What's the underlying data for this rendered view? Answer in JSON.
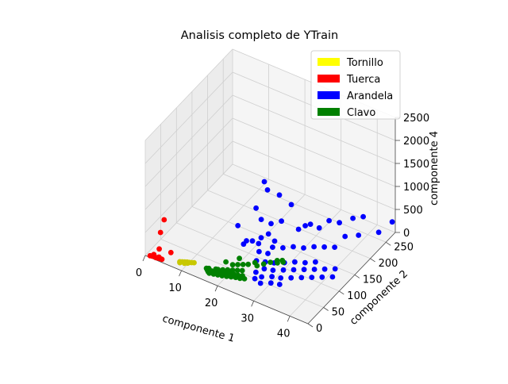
{
  "chart_data": {
    "type": "scatter",
    "projection": "3d",
    "title": "Analisis completo de YTrain",
    "xlabel": "componente 1",
    "ylabel": "componente 2",
    "zlabel": "componente 4",
    "xlim": [
      0,
      45
    ],
    "ylim": [
      0,
      280
    ],
    "zlim": [
      0,
      2500
    ],
    "xticks": [
      "0",
      "10",
      "20",
      "30",
      "40"
    ],
    "yticks": [
      "0",
      "50",
      "100",
      "150",
      "200",
      "250"
    ],
    "zticks": [
      "0",
      "500",
      "1000",
      "1500",
      "2000",
      "2500"
    ],
    "grid": true,
    "legend_position": "top-right",
    "series": [
      {
        "name": "Tornillo",
        "color": "#ffff00",
        "marker_color": "#c8c800",
        "points": [
          [
            8.0,
            18,
            0
          ],
          [
            8.5,
            20,
            0
          ],
          [
            9.0,
            22,
            0
          ],
          [
            9.5,
            24,
            0
          ],
          [
            10.0,
            25,
            0
          ],
          [
            8.2,
            16,
            0
          ],
          [
            9.2,
            19,
            0
          ],
          [
            10.5,
            27,
            0
          ],
          [
            11.0,
            29,
            0
          ],
          [
            9.8,
            22,
            0
          ]
        ]
      },
      {
        "name": "Tuerca",
        "color": "#ff0000",
        "marker_color": "#ff0000",
        "points": [
          [
            1.0,
            4,
            0
          ],
          [
            1.5,
            5,
            0
          ],
          [
            2.0,
            6,
            0
          ],
          [
            2.5,
            5,
            0
          ],
          [
            3.0,
            6,
            0
          ],
          [
            3.5,
            7,
            0
          ],
          [
            4.0,
            7,
            0
          ],
          [
            1.5,
            10,
            0
          ],
          [
            3.0,
            9,
            0
          ],
          [
            3.0,
            10,
            170
          ],
          [
            3.0,
            14,
            500
          ],
          [
            3.5,
            20,
            750
          ],
          [
            4.5,
            30,
            0
          ]
        ]
      },
      {
        "name": "Arandela",
        "color": "#0000ff",
        "marker_color": "#0000ff",
        "points": [
          [
            20.0,
            150,
            1200
          ],
          [
            20.0,
            160,
            950
          ],
          [
            19.0,
            135,
            700
          ],
          [
            20.0,
            140,
            450
          ],
          [
            17.0,
            100,
            500
          ],
          [
            22.0,
            175,
            800
          ],
          [
            21.0,
            160,
            250
          ],
          [
            23.0,
            170,
            300
          ],
          [
            24.0,
            190,
            550
          ],
          [
            22.0,
            140,
            200
          ],
          [
            18.5,
            110,
            150
          ],
          [
            21.0,
            120,
            100
          ],
          [
            26.0,
            190,
            80
          ],
          [
            27.0,
            200,
            120
          ],
          [
            28.0,
            205,
            150
          ],
          [
            30.0,
            210,
            100
          ],
          [
            31.0,
            230,
            150
          ],
          [
            33.0,
            240,
            100
          ],
          [
            35.0,
            260,
            120
          ],
          [
            37.0,
            270,
            150
          ],
          [
            24.0,
            130,
            50
          ],
          [
            26.0,
            140,
            30
          ],
          [
            28.0,
            150,
            50
          ],
          [
            30.0,
            160,
            20
          ],
          [
            32.0,
            170,
            40
          ],
          [
            34.0,
            180,
            30
          ],
          [
            36.0,
            190,
            20
          ],
          [
            22.0,
            110,
            30
          ],
          [
            24.0,
            115,
            20
          ],
          [
            25.0,
            95,
            10
          ],
          [
            27.0,
            100,
            20
          ],
          [
            29.0,
            110,
            20
          ],
          [
            31.0,
            120,
            30
          ],
          [
            33.0,
            130,
            10
          ],
          [
            35.0,
            140,
            20
          ],
          [
            23.0,
            90,
            5
          ],
          [
            26.0,
            80,
            0
          ],
          [
            28.0,
            85,
            0
          ],
          [
            30.0,
            95,
            0
          ],
          [
            32.0,
            105,
            0
          ],
          [
            34.0,
            115,
            0
          ],
          [
            36.0,
            125,
            0
          ],
          [
            38.0,
            135,
            0
          ],
          [
            40.0,
            145,
            0
          ],
          [
            25.0,
            65,
            0
          ],
          [
            27.0,
            60,
            0
          ],
          [
            29.0,
            70,
            0
          ],
          [
            31.0,
            75,
            0
          ],
          [
            33.0,
            85,
            0
          ],
          [
            35.0,
            95,
            0
          ],
          [
            37.0,
            105,
            0
          ],
          [
            39.0,
            115,
            0
          ],
          [
            41.0,
            125,
            0
          ],
          [
            26.0,
            50,
            0
          ],
          [
            28.0,
            45,
            0
          ],
          [
            30.0,
            55,
            0
          ],
          [
            32.0,
            60,
            0
          ],
          [
            21.0,
            100,
            300
          ],
          [
            23.0,
            105,
            400
          ],
          [
            25.0,
            125,
            250
          ],
          [
            19.0,
            95,
            200
          ],
          [
            43.0,
            250,
            150
          ],
          [
            45.0,
            270,
            300
          ],
          [
            38.0,
            200,
            250
          ],
          [
            40.0,
            220,
            200
          ]
        ]
      },
      {
        "name": "Clavo",
        "color": "#008000",
        "marker_color": "#008000",
        "points": [
          [
            15.0,
            25,
            0
          ],
          [
            16.0,
            27,
            0
          ],
          [
            17.0,
            30,
            0
          ],
          [
            18.0,
            32,
            0
          ],
          [
            19.0,
            35,
            0
          ],
          [
            20.0,
            38,
            0
          ],
          [
            21.0,
            40,
            0
          ],
          [
            22.0,
            42,
            0
          ],
          [
            23.0,
            45,
            0
          ],
          [
            15.5,
            22,
            0
          ],
          [
            16.5,
            24,
            0
          ],
          [
            17.5,
            26,
            0
          ],
          [
            18.5,
            28,
            0
          ],
          [
            19.5,
            31,
            0
          ],
          [
            20.5,
            33,
            0
          ],
          [
            21.5,
            36,
            0
          ],
          [
            22.5,
            39,
            0
          ],
          [
            23.5,
            41,
            0
          ],
          [
            16.0,
            20,
            0
          ],
          [
            17.0,
            22,
            0
          ],
          [
            18.0,
            24,
            0
          ],
          [
            19.0,
            26,
            0
          ],
          [
            20.0,
            29,
            0
          ],
          [
            21.0,
            32,
            0
          ],
          [
            22.0,
            35,
            0
          ],
          [
            23.0,
            37,
            0
          ],
          [
            24.0,
            40,
            0
          ],
          [
            17.0,
            36,
            0
          ],
          [
            18.0,
            40,
            0
          ],
          [
            19.0,
            44,
            0
          ],
          [
            20.0,
            48,
            0
          ],
          [
            21.0,
            52,
            0
          ],
          [
            22.0,
            56,
            0
          ],
          [
            19.0,
            60,
            0
          ],
          [
            20.0,
            65,
            0
          ],
          [
            21.0,
            70,
            0
          ],
          [
            22.0,
            75,
            0
          ],
          [
            24.0,
            80,
            0
          ],
          [
            23.0,
            85,
            0
          ],
          [
            25.0,
            90,
            0
          ],
          [
            26.0,
            100,
            0
          ],
          [
            27.0,
            110,
            0
          ],
          [
            28.0,
            115,
            0
          ],
          [
            27.5,
            105,
            0
          ],
          [
            28.5,
            112,
            0
          ],
          [
            18.0,
            50,
            100
          ],
          [
            20.0,
            70,
            100
          ],
          [
            16.5,
            35,
            0
          ],
          [
            15.0,
            30,
            0
          ],
          [
            14.5,
            28,
            0
          ]
        ]
      }
    ]
  }
}
